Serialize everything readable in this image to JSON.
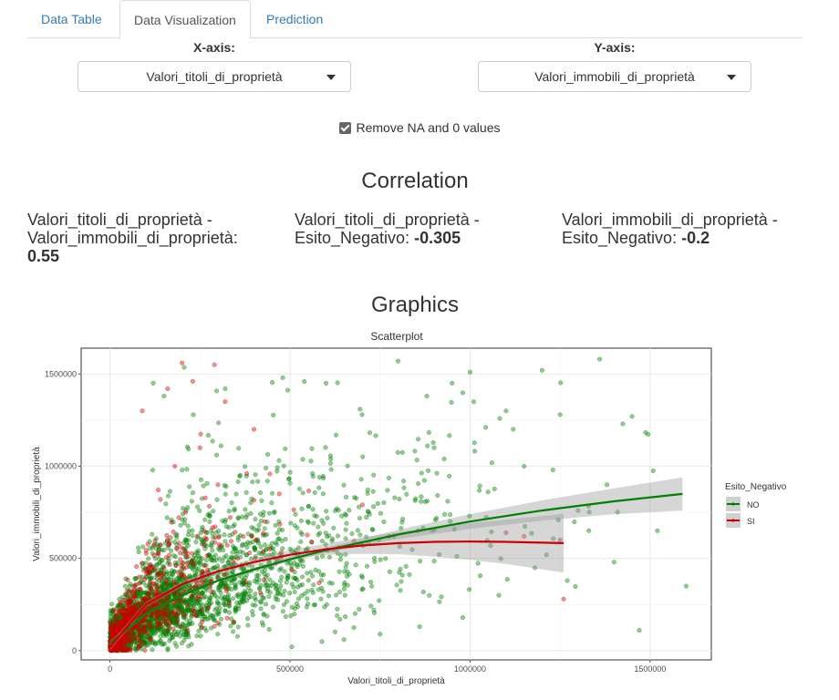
{
  "tabs": [
    {
      "label": "Data Table"
    },
    {
      "label": "Data Visualization"
    },
    {
      "label": "Prediction"
    }
  ],
  "controls": {
    "x_axis_label": "X-axis:",
    "y_axis_label": "Y-axis:",
    "x_axis_value": "Valori_titoli_di_proprietà",
    "y_axis_value": "Valori_immobili_di_proprietà",
    "remove_na_label": "Remove NA and 0 values",
    "remove_na_checked": true
  },
  "correlation": {
    "title": "Correlation",
    "items": [
      {
        "pair": "Valori_titoli_di_proprietà - Valori_immobili_di_proprietà:",
        "value": "0.55"
      },
      {
        "pair": "Valori_titoli_di_proprietà - Esito_Negativo:",
        "value": "-0.305"
      },
      {
        "pair": "Valori_immobili_di_proprietà - Esito_Negativo:",
        "value": "-0.2"
      }
    ]
  },
  "graphics": {
    "title": "Graphics"
  },
  "chart_data": {
    "type": "scatter",
    "title": "Scatterplot",
    "xlabel": "Valori_titoli_di_proprietà",
    "ylabel": "Valori_immobili_di_proprietà",
    "xlim": [
      -80000,
      1670000
    ],
    "ylim": [
      -50000,
      1640000
    ],
    "x_ticks": [
      0,
      500000,
      1000000,
      1500000
    ],
    "x_tick_labels": [
      "0",
      "500000",
      "1000000",
      "1500000"
    ],
    "y_ticks": [
      0,
      500000,
      1000000,
      1500000
    ],
    "y_tick_labels": [
      "0",
      "500000",
      "1000000",
      "1500000"
    ],
    "grid": true,
    "legend": {
      "title": "Esito_Negativo",
      "placement": "right"
    },
    "series": [
      {
        "name": "NO",
        "color": "#008000",
        "smooth": {
          "x": [
            0,
            100000,
            200000,
            300000,
            400000,
            500000,
            600000,
            800000,
            1000000,
            1200000,
            1400000,
            1590000
          ],
          "y": [
            40000,
            200000,
            300000,
            380000,
            440000,
            495000,
            545000,
            630000,
            700000,
            760000,
            810000,
            850000
          ],
          "band_halfwidth": [
            15000,
            8000,
            8000,
            9000,
            10000,
            12000,
            15000,
            25000,
            40000,
            55000,
            70000,
            90000
          ]
        },
        "points": [
          [
            1000000,
            1510000
          ],
          [
            950000,
            1450000
          ],
          [
            1200000,
            1520000
          ],
          [
            1360000,
            1580000
          ],
          [
            800000,
            1570000
          ],
          [
            1100000,
            1300000
          ],
          [
            1250000,
            1280000
          ],
          [
            1450000,
            1270000
          ],
          [
            1600000,
            350000
          ],
          [
            1470000,
            110000
          ],
          [
            1380000,
            900000
          ],
          [
            1300000,
            760000
          ],
          [
            1520000,
            650000
          ],
          [
            1400000,
            480000
          ],
          [
            1270000,
            380000
          ],
          [
            1150000,
            1000000
          ],
          [
            1050000,
            860000
          ],
          [
            900000,
            1100000
          ],
          [
            700000,
            1280000
          ],
          [
            600000,
            1450000
          ],
          [
            480000,
            1480000
          ],
          [
            320000,
            1420000
          ],
          [
            120000,
            1450000
          ],
          [
            150000,
            1380000
          ],
          [
            1230000,
            980000
          ],
          [
            1330000,
            650000
          ],
          [
            1180000,
            450000
          ],
          [
            1080000,
            300000
          ],
          [
            980000,
            180000
          ],
          [
            860000,
            130000
          ],
          [
            750000,
            90000
          ],
          [
            650000,
            60000
          ],
          [
            1120000,
            1200000
          ],
          [
            1010000,
            1350000
          ],
          [
            880000,
            1380000
          ]
        ]
      },
      {
        "name": "SI",
        "color": "#cc0000",
        "smooth": {
          "x": [
            0,
            100000,
            200000,
            300000,
            400000,
            500000,
            600000,
            700000,
            800000,
            900000,
            1000000,
            1100000,
            1260000
          ],
          "y": [
            20000,
            250000,
            360000,
            430000,
            480000,
            520000,
            550000,
            570000,
            583000,
            590000,
            592000,
            590000,
            583000
          ],
          "band_halfwidth": [
            20000,
            15000,
            15000,
            18000,
            20000,
            25000,
            30000,
            45000,
            60000,
            80000,
            100000,
            120000,
            160000
          ]
        },
        "points": [
          [
            200000,
            1560000
          ],
          [
            290000,
            1550000
          ],
          [
            160000,
            1420000
          ],
          [
            230000,
            1460000
          ],
          [
            250000,
            1100000
          ],
          [
            180000,
            1000000
          ],
          [
            320000,
            1350000
          ],
          [
            90000,
            1300000
          ],
          [
            300000,
            900000
          ],
          [
            400000,
            1200000
          ],
          [
            210000,
            750000
          ],
          [
            140000,
            820000
          ],
          [
            380000,
            960000
          ],
          [
            470000,
            850000
          ],
          [
            1250000,
            600000
          ],
          [
            1260000,
            280000
          ],
          [
            560000,
            590000
          ],
          [
            430000,
            700000
          ],
          [
            1100000,
            640000
          ],
          [
            1150000,
            620000
          ]
        ]
      }
    ]
  }
}
